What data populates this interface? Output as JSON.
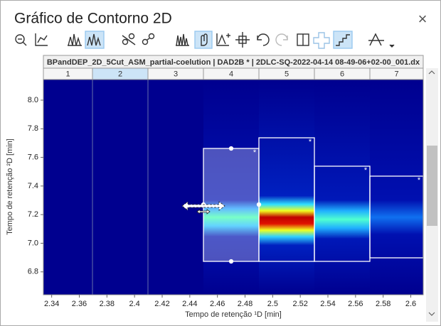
{
  "window": {
    "title": "Gráfico de Contorno 2D",
    "close": "×"
  },
  "plot": {
    "header": "BPandDEP_2D_5Cut_ASM_partial-coelution | DAD2B * | 2DLC-SQ-2022-04-14 08-49-06+02-00_001.dx",
    "columns": [
      "1",
      "2",
      "3",
      "4",
      "5",
      "6",
      "7"
    ],
    "selected_column": 1,
    "x_label": "Tempo de retenção ¹D [min]",
    "y_label": "Tempo de retenção ²D [min]",
    "xlim": [
      2.334,
      2.609
    ],
    "ylim": [
      6.64,
      8.144
    ],
    "xticks": [
      2.34,
      2.36,
      2.38,
      2.4,
      2.42,
      2.44,
      2.46,
      2.48,
      2.5,
      2.52,
      2.54,
      2.56,
      2.58,
      2.6
    ],
    "yticks": [
      6.8,
      {
        "value": 7.0,
        "label": "7.0"
      },
      7.2,
      7.4,
      7.6,
      7.8,
      {
        "value": 8.0,
        "label": "8.0"
      }
    ],
    "peak_marker": "*"
  }
}
